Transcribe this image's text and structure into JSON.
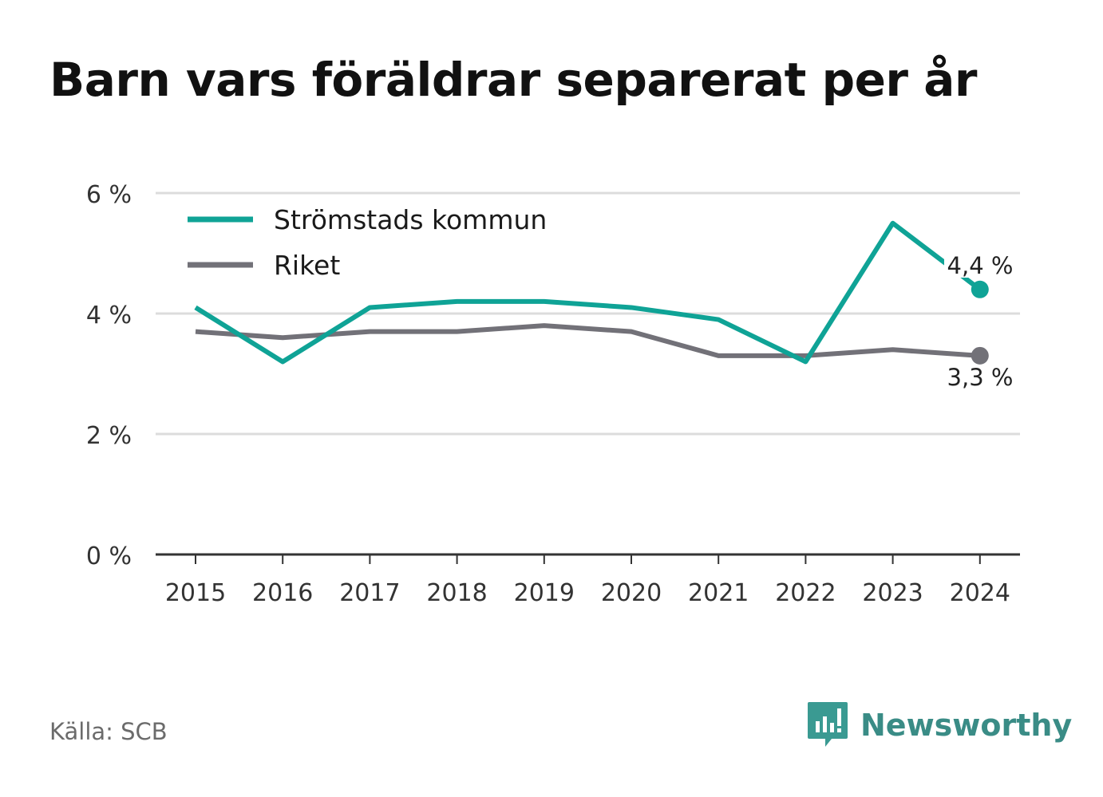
{
  "chart_data": {
    "type": "line",
    "title": "Barn vars föräldrar separerat per år",
    "x": [
      "2015",
      "2016",
      "2017",
      "2018",
      "2019",
      "2020",
      "2021",
      "2022",
      "2023",
      "2024"
    ],
    "series": [
      {
        "name": "Strömstads kommun",
        "color": "#0fa396",
        "values": [
          4.1,
          3.2,
          4.1,
          4.2,
          4.2,
          4.1,
          3.9,
          3.2,
          5.5,
          4.4
        ],
        "end_label": "4,4 %"
      },
      {
        "name": "Riket",
        "color": "#727178",
        "values": [
          3.7,
          3.6,
          3.7,
          3.7,
          3.8,
          3.7,
          3.3,
          3.3,
          3.4,
          3.3
        ],
        "end_label": "3,3 %"
      }
    ],
    "y_ticks": [
      0,
      2,
      4,
      6
    ],
    "y_tick_labels": [
      "0 %",
      "2 %",
      "4 %",
      "6 %"
    ],
    "ylim": [
      0,
      6
    ],
    "grid": true,
    "legend_position": "top-left"
  },
  "footer": {
    "source": "Källa: SCB",
    "brand": "Newsworthy"
  }
}
